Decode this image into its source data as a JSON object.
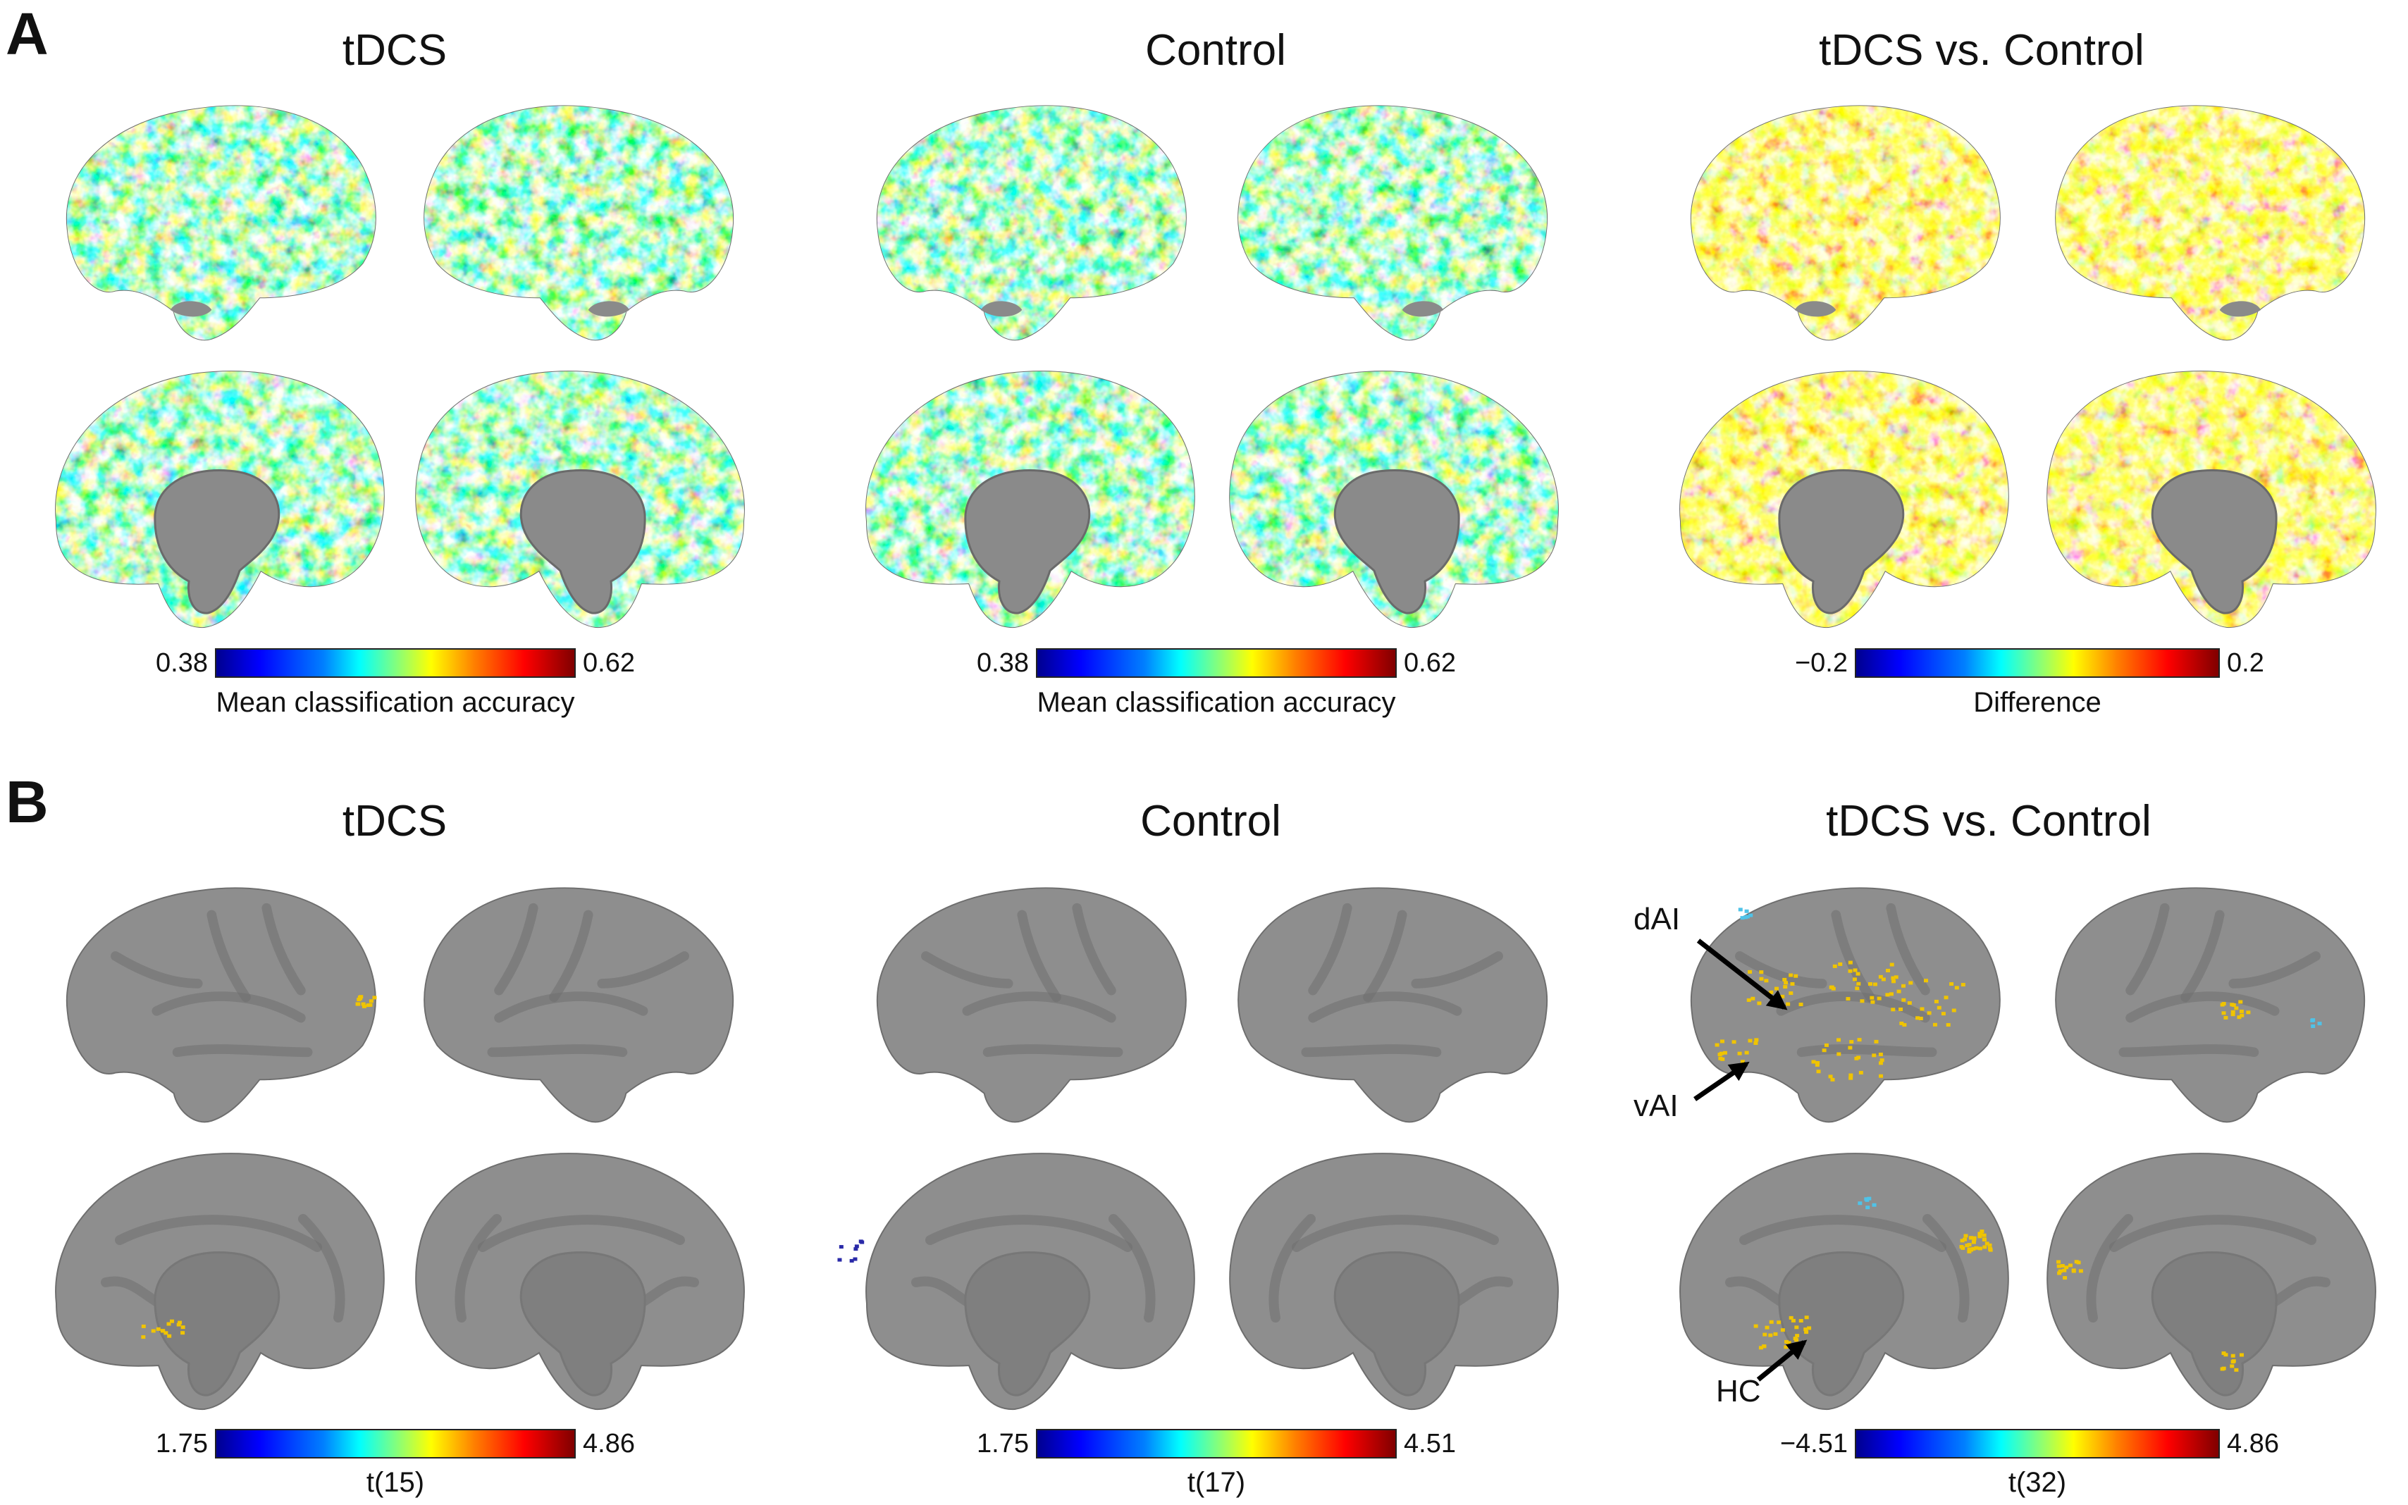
{
  "panels": [
    {
      "letter": "A",
      "columns": [
        {
          "title": "tDCS",
          "colorbar": {
            "min": "0.38",
            "max": "0.62",
            "label": "Mean classification accuracy"
          }
        },
        {
          "title": "Control",
          "colorbar": {
            "min": "0.38",
            "max": "0.62",
            "label": "Mean classification accuracy"
          }
        },
        {
          "title": "tDCS vs. Control",
          "colorbar": {
            "min": "−0.2",
            "max": "0.2",
            "label": "Difference"
          }
        }
      ]
    },
    {
      "letter": "B",
      "columns": [
        {
          "title": "tDCS",
          "colorbar": {
            "min": "1.75",
            "max": "4.86",
            "label": "t(15)"
          }
        },
        {
          "title": "Control",
          "colorbar": {
            "min": "1.75",
            "max": "4.51",
            "label": "t(17)"
          }
        },
        {
          "title": "tDCS vs. Control",
          "colorbar": {
            "min": "−4.51",
            "max": "4.86",
            "label": "t(32)"
          }
        }
      ]
    }
  ],
  "annotations": {
    "dai": "dAI",
    "vai": "vAI",
    "hc": "HC"
  },
  "colors": {
    "cortex_gray": "#8c8c8c",
    "medial_wall": "#7a7a7a",
    "jet_low": "#00008f",
    "jet_high": "#800000"
  }
}
